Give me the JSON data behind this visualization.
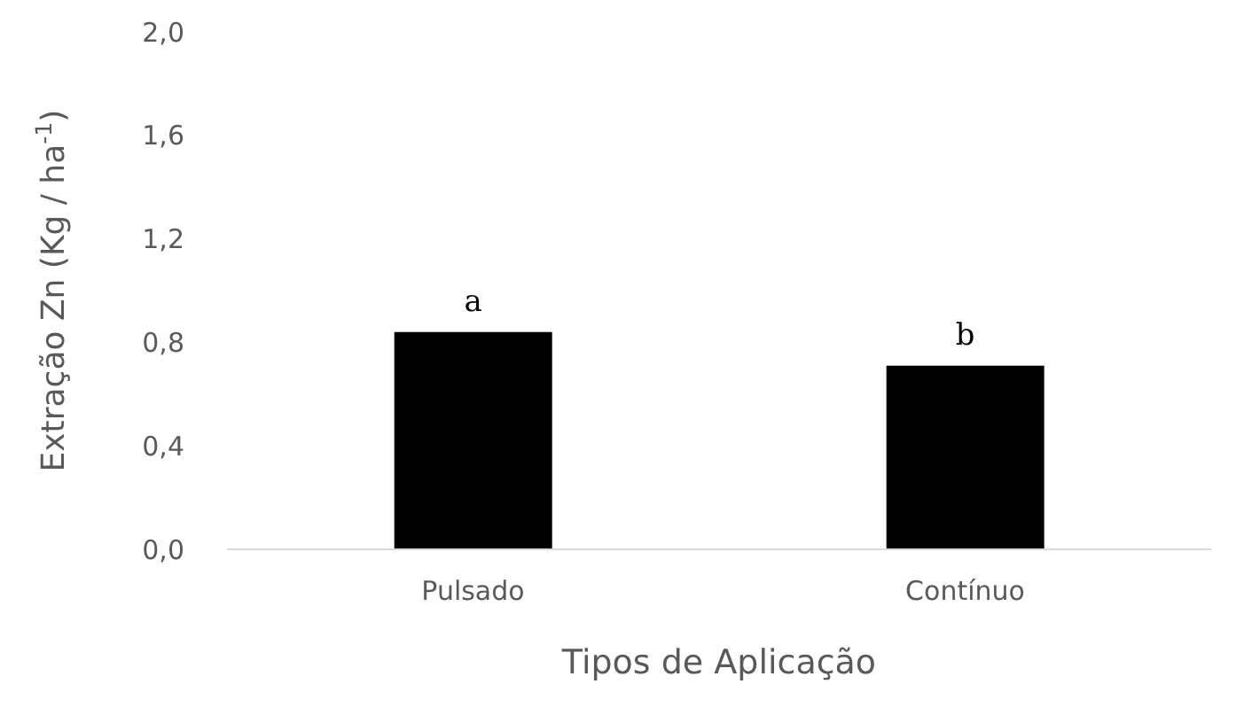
{
  "chart_data": {
    "type": "bar",
    "xlabel": "Tipos de Aplicação",
    "ylabel": "Extração Zn (Kg / ha$^{-1}$)",
    "categories": [
      "Pulsado",
      "Contínuo"
    ],
    "series": [
      {
        "color": "#000000",
        "values": [
          0.84,
          0.71
        ],
        "value_labels": [
          "a",
          "b"
        ]
      }
    ],
    "ylim": [
      0,
      2
    ],
    "yticks": [
      {
        "value": 0,
        "label": "0,0"
      },
      {
        "value": 0.4,
        "label": "0,4"
      },
      {
        "value": 0.8,
        "label": "0,8"
      },
      {
        "value": 1.2,
        "label": "1,2"
      },
      {
        "value": 1.6,
        "label": "1,6"
      },
      {
        "value": 2,
        "label": "2,0"
      }
    ],
    "grid": false,
    "legend": false
  }
}
